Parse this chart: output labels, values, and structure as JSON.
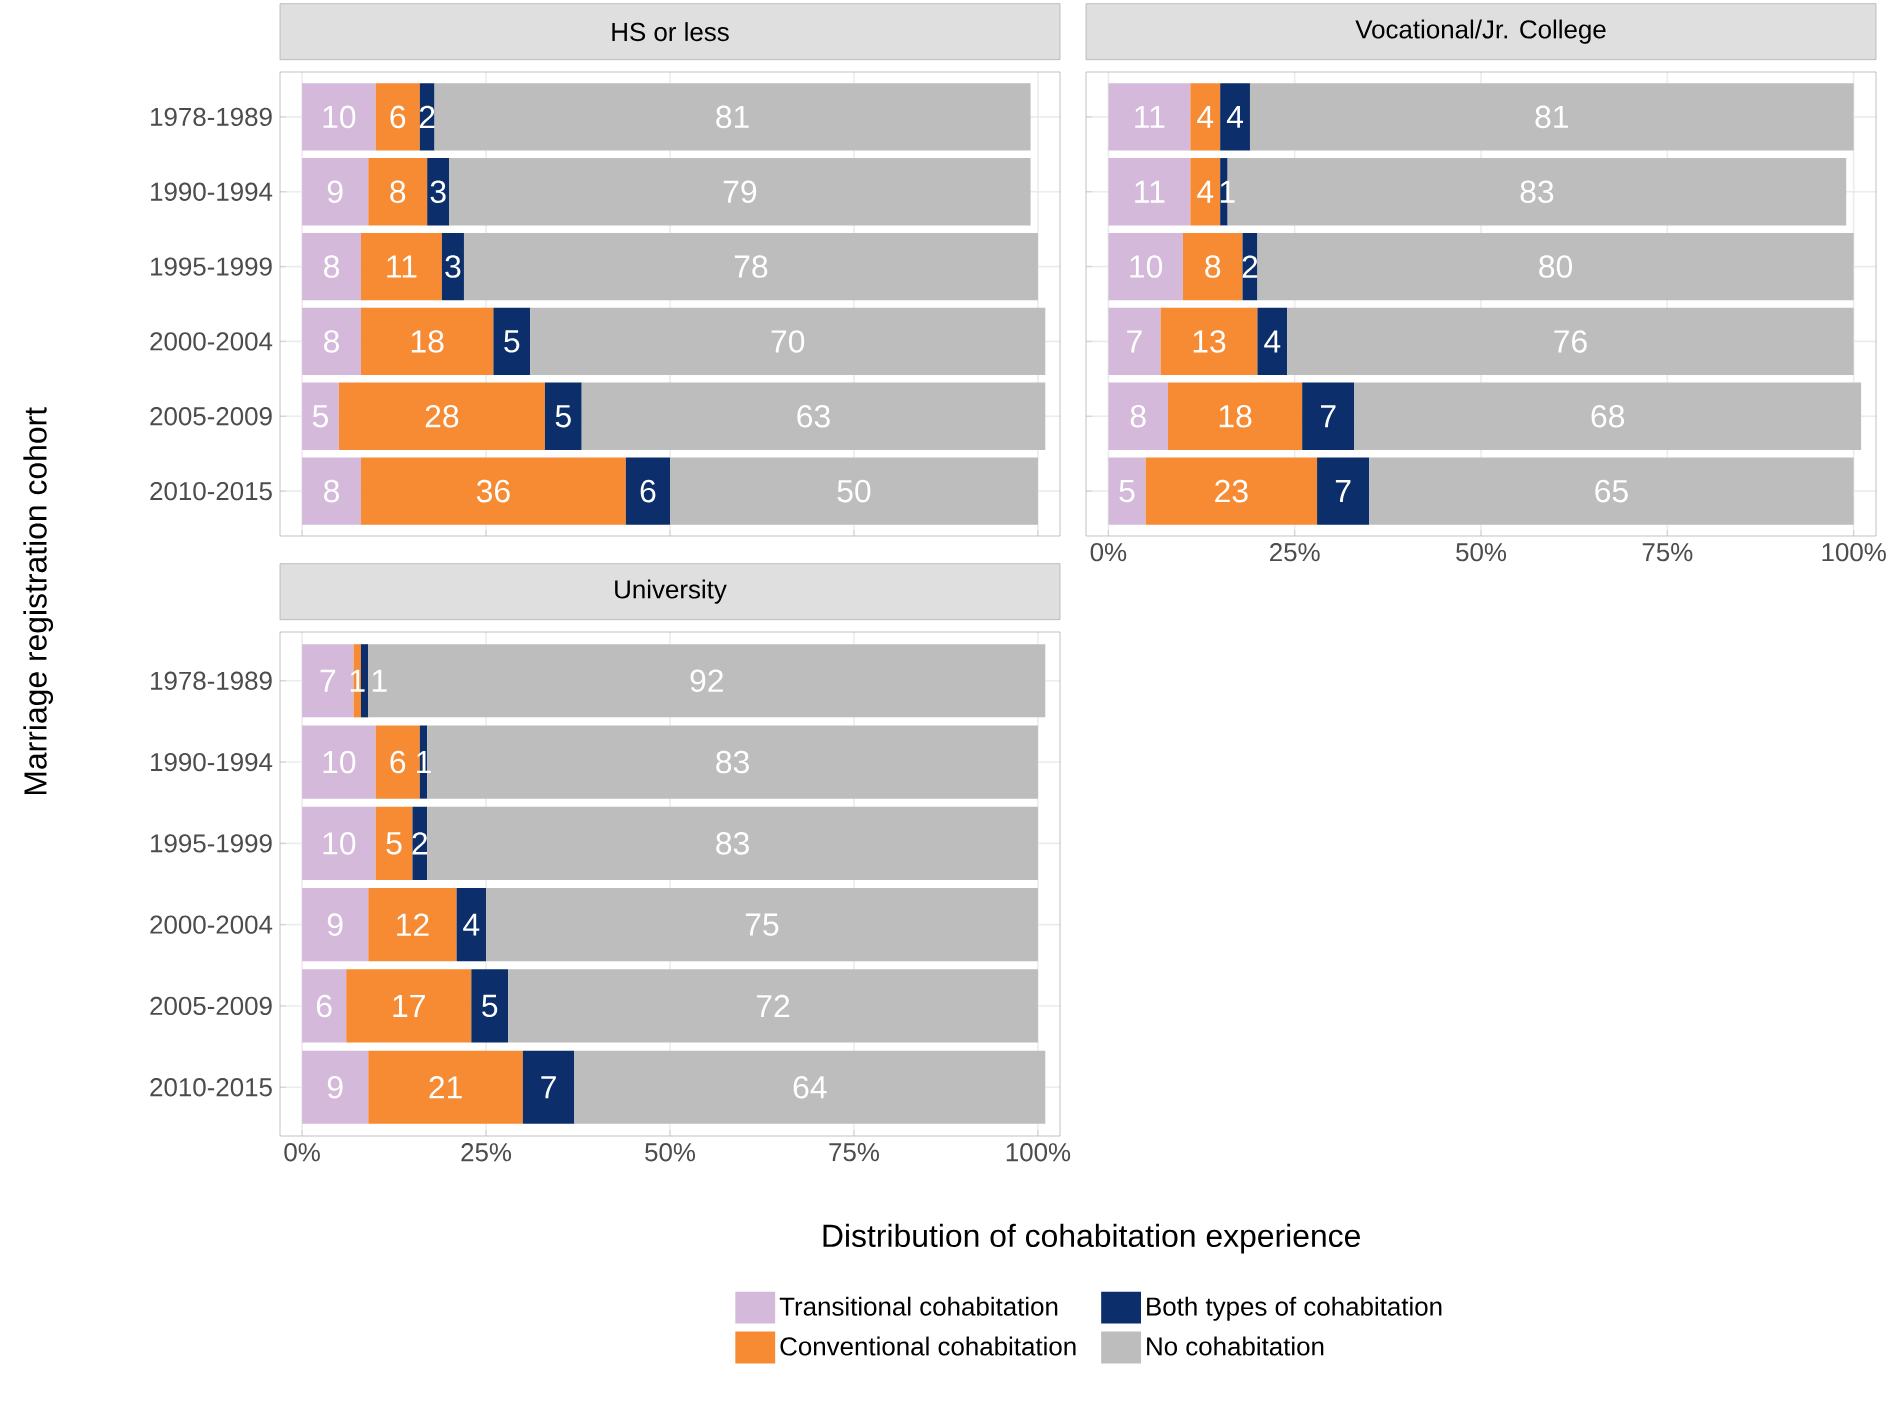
{
  "chart_data": [
    {
      "type": "bar",
      "orientation": "horizontal",
      "stacked": true,
      "data_labels": true,
      "grid": true,
      "tick_labels": "y",
      "title": "HS or less",
      "categories": [
        "1978-1989",
        "1990-1994",
        "1995-1999",
        "2000-2004",
        "2005-2009",
        "2010-2015"
      ],
      "xlim": [
        -3,
        103
      ],
      "xticks": [
        0,
        25,
        50,
        75,
        100
      ],
      "series": [
        {
          "color": "#d4b9da",
          "values": [
            10,
            9,
            8,
            8,
            5,
            8
          ]
        },
        {
          "color": "#f68b33",
          "values": [
            6,
            8,
            11,
            18,
            28,
            36
          ]
        },
        {
          "color": "#0c2f6b",
          "values": [
            2,
            3,
            3,
            5,
            5,
            6
          ]
        },
        {
          "color": "#bdbdbd",
          "values": [
            81,
            79,
            78,
            70,
            63,
            50
          ]
        }
      ]
    },
    {
      "type": "bar",
      "orientation": "horizontal",
      "stacked": true,
      "data_labels": true,
      "grid": true,
      "tick_labels": "x",
      "title": "Vocational/Jr. College",
      "categories": [
        null,
        null,
        null,
        null,
        null,
        null
      ],
      "xlim": [
        -3,
        103
      ],
      "xticks": [
        {
          "value": 0,
          "label": "0%"
        },
        {
          "value": 25,
          "label": "25%"
        },
        {
          "value": 50,
          "label": "50%"
        },
        {
          "value": 75,
          "label": "75%"
        },
        {
          "value": 100,
          "label": "100%"
        }
      ],
      "series": [
        {
          "color": "#d4b9da",
          "values": [
            11,
            11,
            10,
            7,
            8,
            5
          ]
        },
        {
          "color": "#f68b33",
          "values": [
            4,
            4,
            8,
            13,
            18,
            23
          ]
        },
        {
          "color": "#0c2f6b",
          "values": [
            4,
            1,
            2,
            4,
            7,
            7
          ]
        },
        {
          "color": "#bdbdbd",
          "values": [
            81,
            83,
            80,
            76,
            68,
            65
          ]
        }
      ]
    },
    {
      "type": "bar",
      "orientation": "horizontal",
      "stacked": true,
      "data_labels": true,
      "grid": true,
      "legend": "bottom",
      "title": "University",
      "xlabel": "Distribution of cohabitation experience",
      "ylabel": "Marriage registration cohort",
      "categories": [
        "1978-1989",
        "1990-1994",
        "1995-1999",
        "2000-2004",
        "2005-2009",
        "2010-2015"
      ],
      "xlim": [
        -3,
        103
      ],
      "xticks": [
        {
          "value": 0,
          "label": "0%"
        },
        {
          "value": 25,
          "label": "25%"
        },
        {
          "value": 50,
          "label": "50%"
        },
        {
          "value": 75,
          "label": "75%"
        },
        {
          "value": 100,
          "label": "100%"
        }
      ],
      "series": [
        {
          "name": "Transitional cohabitation",
          "color": "#d4b9da",
          "values": [
            7,
            10,
            10,
            9,
            6,
            9
          ]
        },
        {
          "name": "Conventional cohabitation",
          "color": "#f68b33",
          "values": [
            1,
            6,
            5,
            12,
            17,
            21
          ]
        },
        {
          "name": "Both types of cohabitation",
          "color": "#0c2f6b",
          "values": [
            1,
            1,
            2,
            4,
            5,
            7
          ]
        },
        {
          "name": "No cohabitation",
          "color": "#bdbdbd",
          "values": [
            92,
            83,
            83,
            75,
            72,
            64
          ]
        }
      ]
    }
  ]
}
